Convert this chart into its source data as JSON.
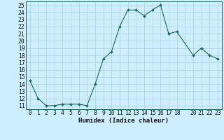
{
  "x": [
    0,
    1,
    2,
    3,
    4,
    5,
    6,
    7,
    8,
    9,
    10,
    11,
    12,
    13,
    14,
    15,
    16,
    17,
    18,
    20,
    21,
    22,
    23
  ],
  "y": [
    14.5,
    12,
    11,
    11,
    11.2,
    11.2,
    11.2,
    11,
    14,
    17.5,
    18.5,
    22,
    24.3,
    24.3,
    23.5,
    24.3,
    25,
    21,
    21.3,
    18,
    19,
    18,
    17.5
  ],
  "line_color": "#1a6b5a",
  "marker": "D",
  "marker_size": 2.0,
  "bg_color": "#cceeff",
  "grid_color": "#aad4d4",
  "xlabel": "Humidex (Indice chaleur)",
  "ylabel_ticks": [
    11,
    12,
    13,
    14,
    15,
    16,
    17,
    18,
    19,
    20,
    21,
    22,
    23,
    24,
    25
  ],
  "ylim": [
    10.5,
    25.5
  ],
  "xlim": [
    -0.5,
    23.5
  ],
  "xtick_labels": [
    "0",
    "1",
    "2",
    "3",
    "4",
    "5",
    "6",
    "7",
    "8",
    "9",
    "10",
    "11",
    "12",
    "13",
    "14",
    "15",
    "16",
    "17",
    "18",
    "",
    "20",
    "21",
    "22",
    "23"
  ],
  "xtick_positions": [
    0,
    1,
    2,
    3,
    4,
    5,
    6,
    7,
    8,
    9,
    10,
    11,
    12,
    13,
    14,
    15,
    16,
    17,
    18,
    19,
    20,
    21,
    22,
    23
  ],
  "font_size": 5.8,
  "xlabel_size": 6.5,
  "spine_color": "#1a6b5a"
}
